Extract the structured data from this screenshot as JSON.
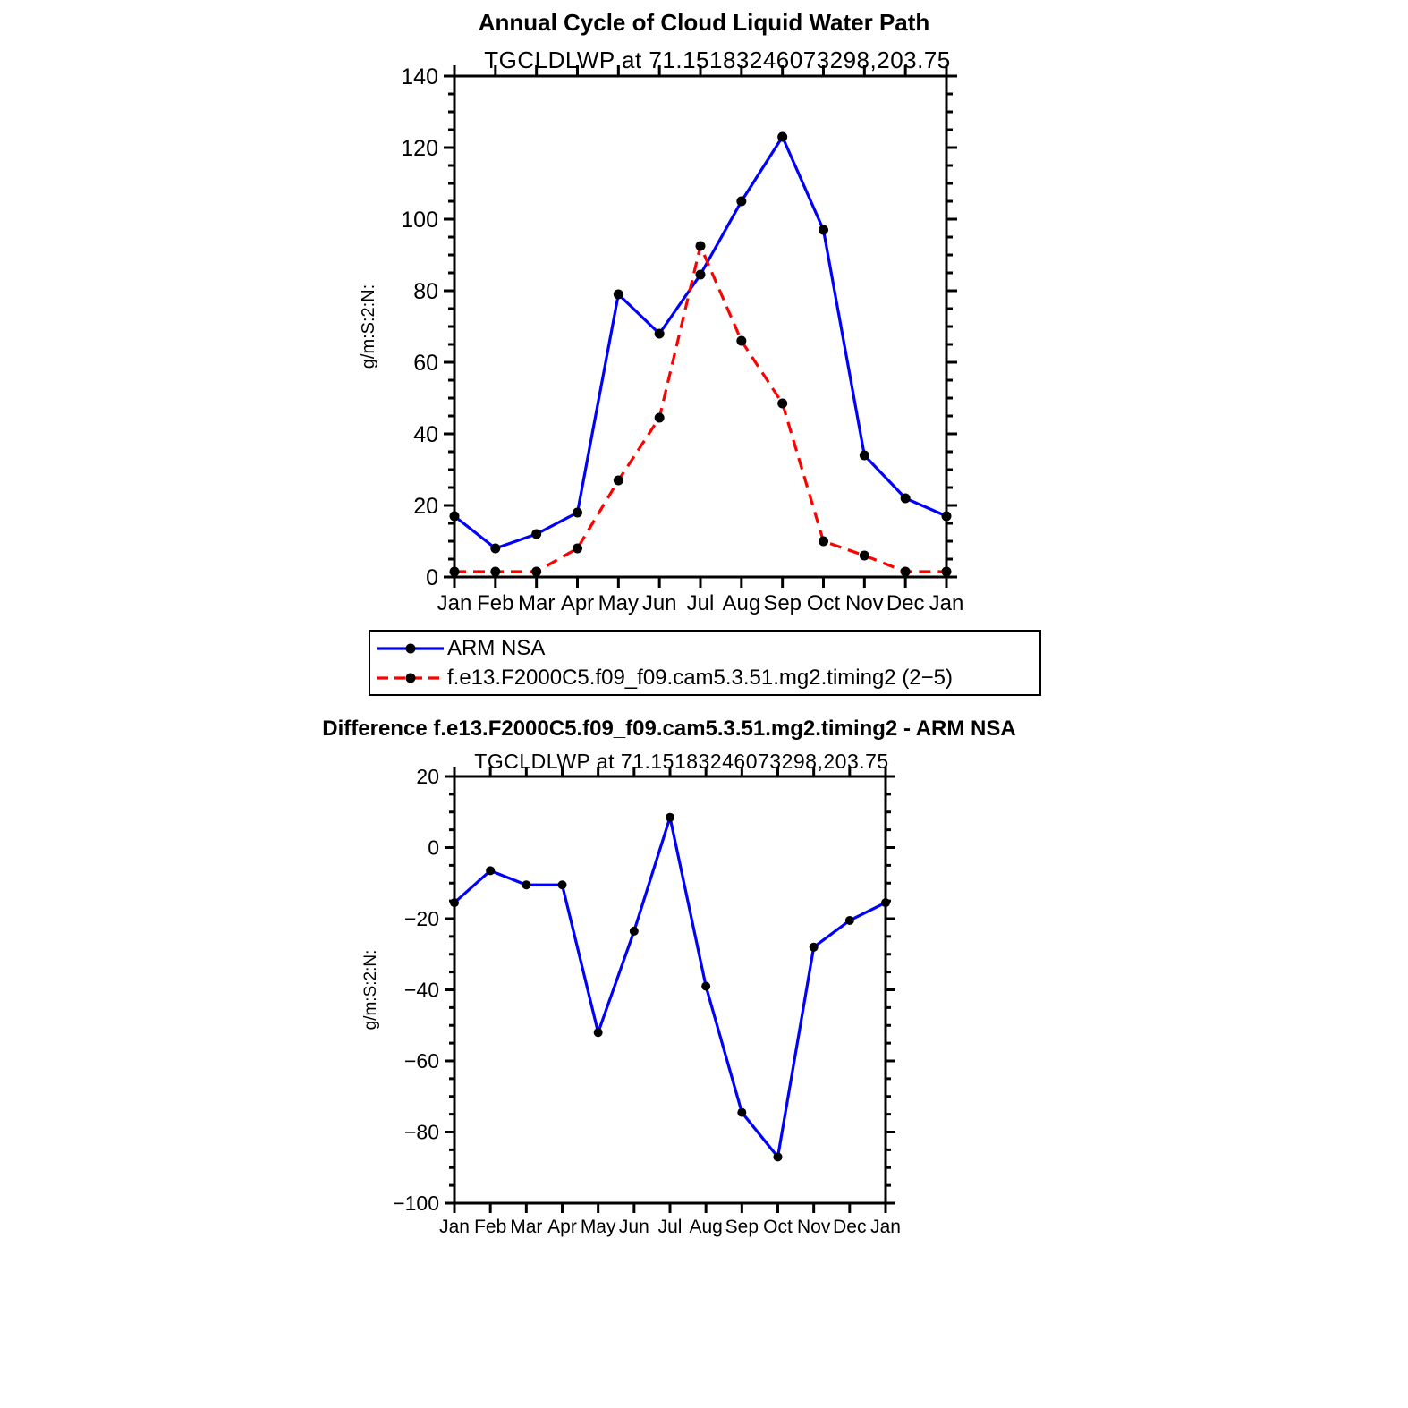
{
  "page": {
    "background": "#ffffff"
  },
  "colors": {
    "obs_line": "#0000ff",
    "model_line": "#ff0000",
    "marker": "#000000",
    "axis": "#000000"
  },
  "chart_data": [
    {
      "type": "line",
      "title": "Annual Cycle of Cloud Liquid Water Path",
      "subtitle": "TGCLDLWP at 71.15183246073298,203.75",
      "ylabel": "g/m:S:2:N:",
      "xlabel": "",
      "categories": [
        "Jan",
        "Feb",
        "Mar",
        "Apr",
        "May",
        "Jun",
        "Jul",
        "Aug",
        "Sep",
        "Oct",
        "Nov",
        "Dec",
        "Jan"
      ],
      "ylim": [
        0,
        140
      ],
      "ytick": 20,
      "grid": false,
      "legend_position": "below-left",
      "series": [
        {
          "name": "ARM NSA",
          "color": "#0000ff",
          "line_style": "solid",
          "marker": "circle",
          "values": [
            17,
            8,
            12,
            18,
            79,
            68,
            84.5,
            105,
            123,
            97,
            34,
            22,
            17
          ]
        },
        {
          "name": "f.e13.F2000C5.f09_f09.cam5.3.51.mg2.timing2 (2−5)",
          "color": "#ff0000",
          "line_style": "dashed",
          "marker": "circle",
          "values": [
            1.5,
            1.5,
            1.5,
            8,
            27,
            44.5,
            92.5,
            66,
            48.5,
            10,
            6,
            1.5,
            1.5
          ]
        }
      ]
    },
    {
      "type": "line",
      "title": "Difference f.e13.F2000C5.f09_f09.cam5.3.51.mg2.timing2 - ARM NSA",
      "subtitle": "TGCLDLWP at 71.15183246073298,203.75",
      "ylabel": "g/m:S:2:N:",
      "xlabel": "",
      "categories": [
        "Jan",
        "Feb",
        "Mar",
        "Apr",
        "May",
        "Jun",
        "Jul",
        "Aug",
        "Sep",
        "Oct",
        "Nov",
        "Dec",
        "Jan"
      ],
      "ylim": [
        -100,
        20
      ],
      "ytick": 20,
      "grid": false,
      "series": [
        {
          "name": "Difference",
          "color": "#0000ff",
          "line_style": "solid",
          "marker": "circle",
          "values": [
            -15.5,
            -6.5,
            -10.5,
            -10.5,
            -52,
            -23.5,
            8.5,
            -39,
            -74.5,
            -87,
            -28,
            -20.5,
            -15.5
          ]
        }
      ]
    }
  ]
}
